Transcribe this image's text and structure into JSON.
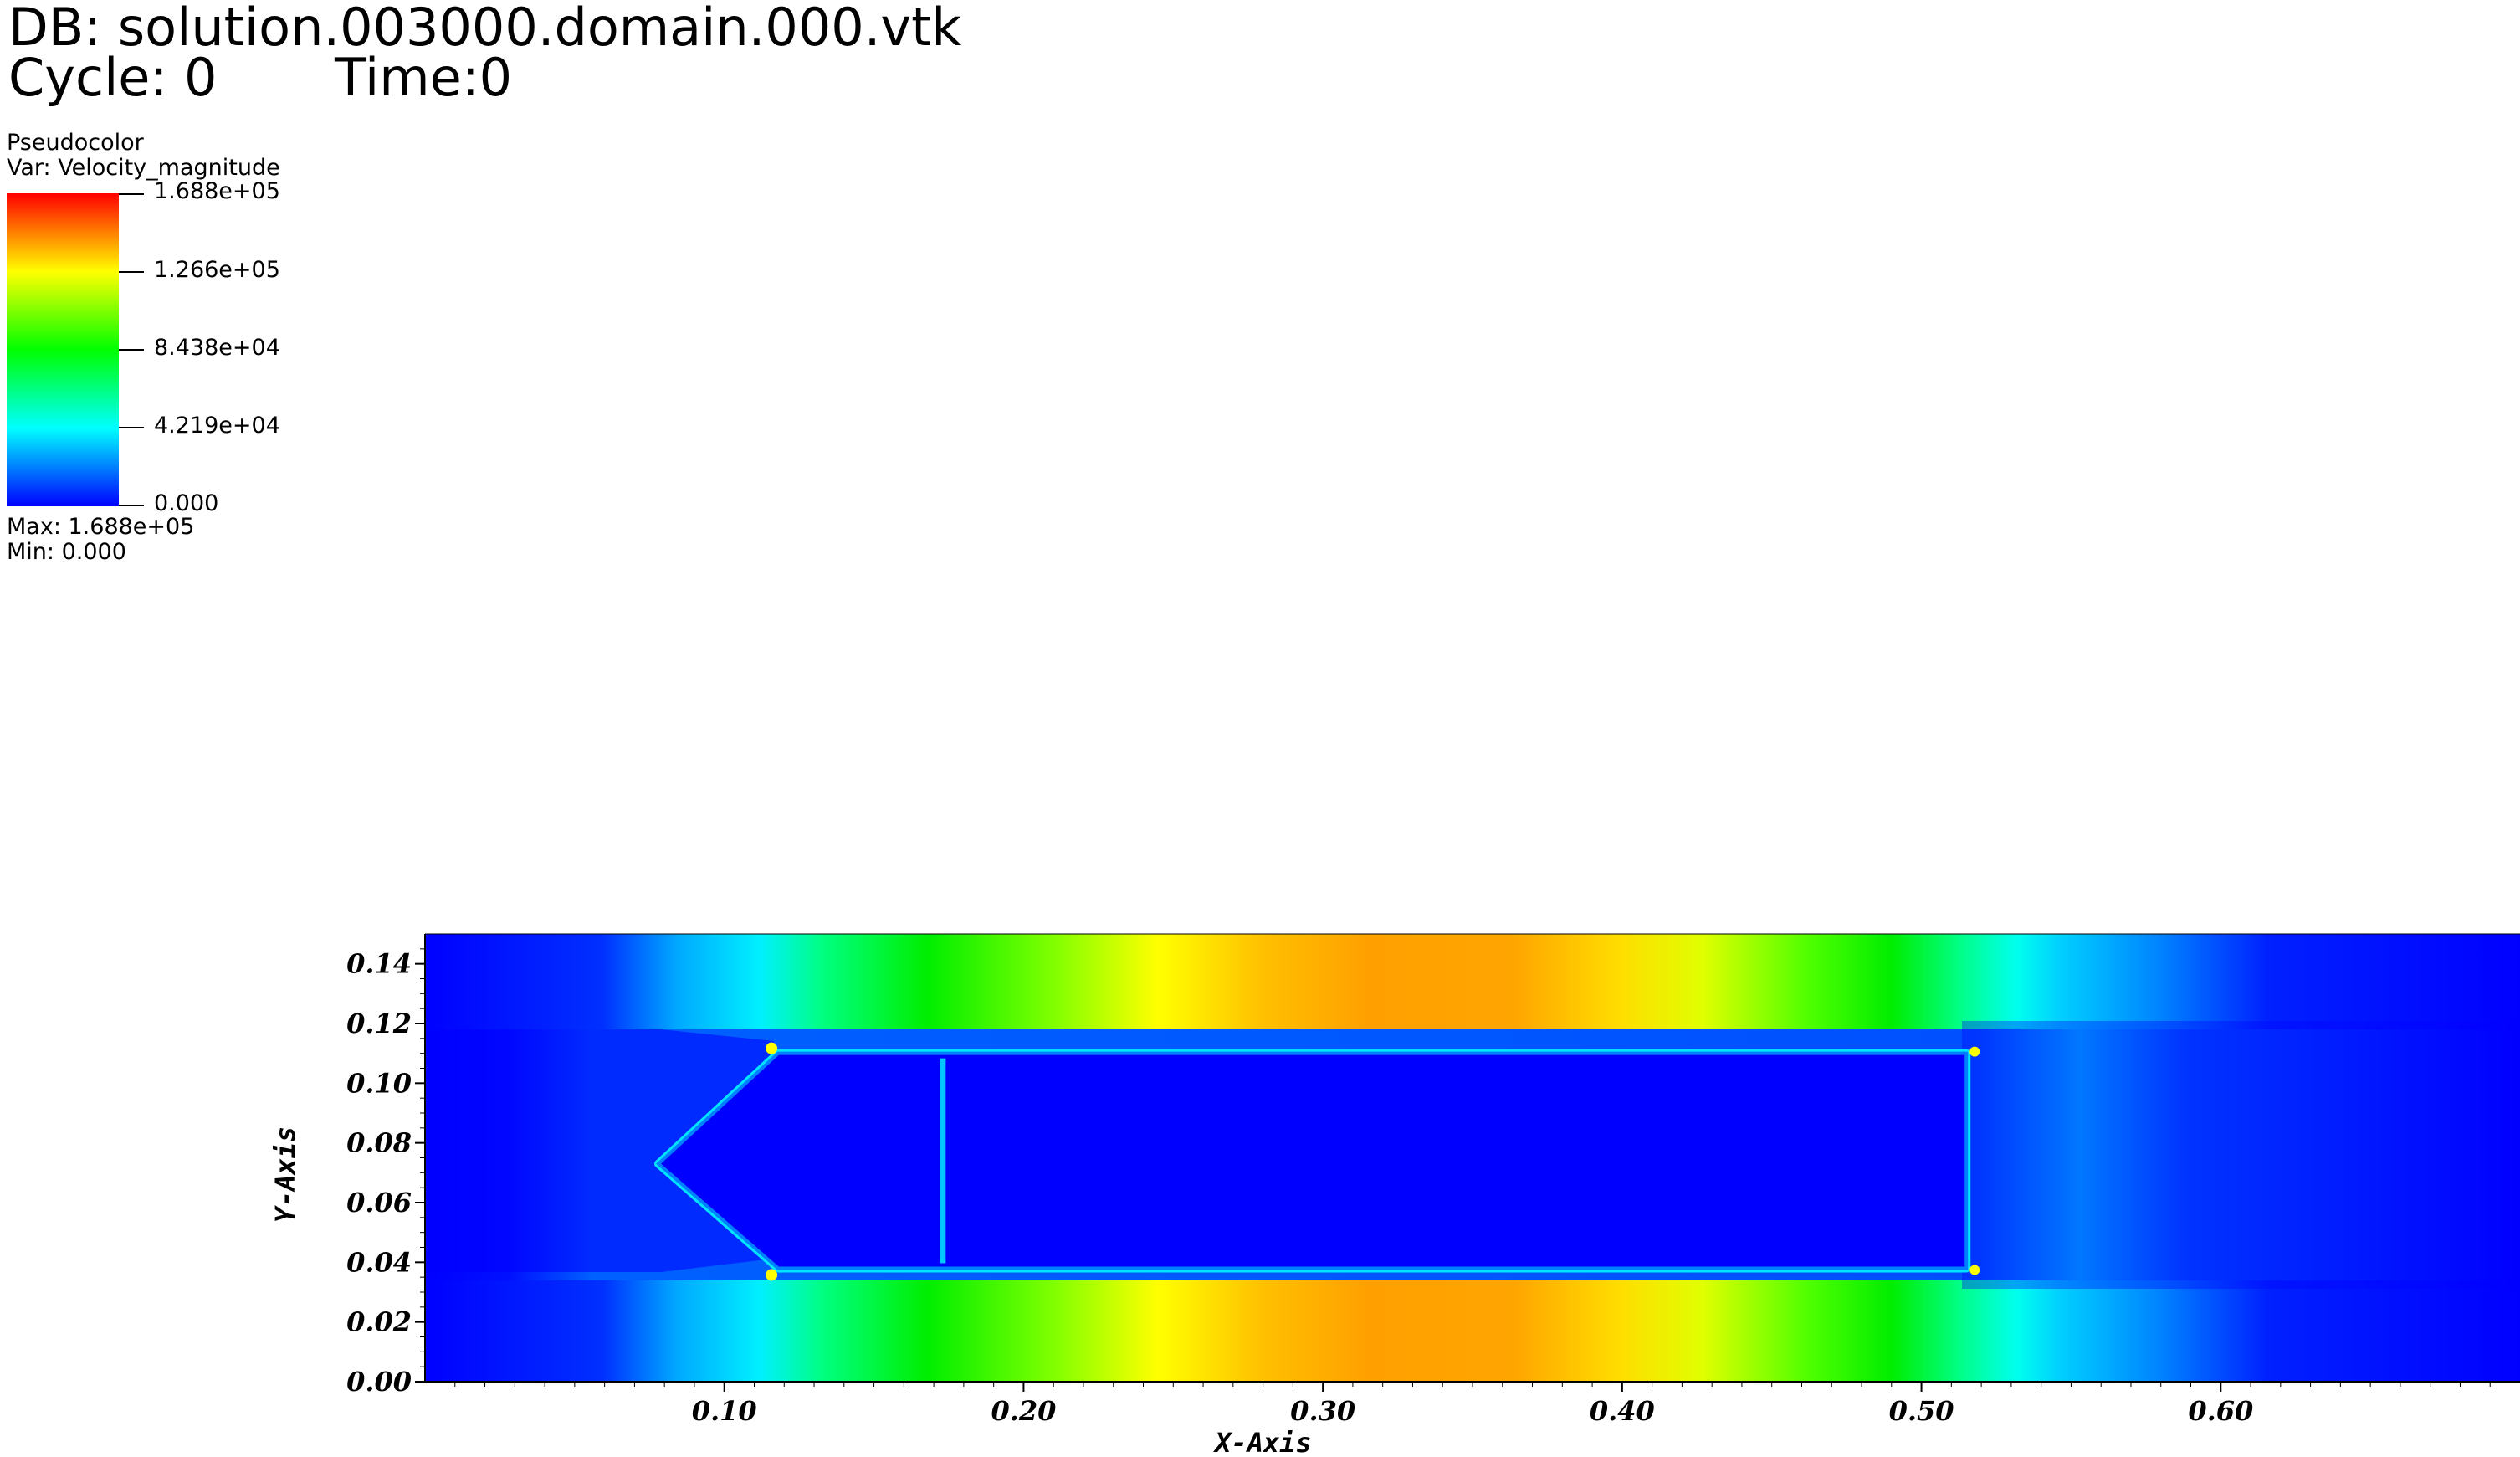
{
  "header": {
    "db": "DB: solution.003000.domain.000.vtk",
    "cycle": "Cycle: 0",
    "time": "Time:0"
  },
  "legend": {
    "plot_type": "Pseudocolor",
    "variable": "Var: Velocity_magnitude",
    "colormap": [
      "#0000ff",
      "#00ffff",
      "#00ff00",
      "#ffff00",
      "#ff0000"
    ],
    "tick_labels": [
      "1.688e+05",
      "1.266e+05",
      "8.438e+04",
      "4.219e+04",
      "0.000"
    ],
    "max_label": "Max:  1.688e+05",
    "min_label": "Min:  0.000"
  },
  "chart_data": {
    "type": "heatmap",
    "variable": "Velocity_magnitude",
    "value_range": [
      0,
      168800
    ],
    "xlabel": "X-Axis",
    "ylabel": "Y-Axis",
    "xlim": [
      0.0,
      0.7
    ],
    "ylim": [
      0.0,
      0.15
    ],
    "x_ticks": [
      "0.10",
      "0.20",
      "0.30",
      "0.40",
      "0.50",
      "0.60"
    ],
    "y_ticks": [
      "0.00",
      "0.02",
      "0.04",
      "0.06",
      "0.08",
      "0.10",
      "0.12",
      "0.14"
    ],
    "body": {
      "nose_tip": [
        0.078,
        0.073
      ],
      "upper_shoulder": [
        0.118,
        0.11
      ],
      "lower_shoulder": [
        0.118,
        0.038
      ],
      "tail_x": 0.515,
      "top_y": 0.11,
      "bottom_y": 0.038,
      "seam_x": 0.173,
      "interior_value": 0
    },
    "flow": {
      "freestream_value": 0,
      "peak_value_location_x": 0.31,
      "peak_value_approx": 150000
    }
  }
}
